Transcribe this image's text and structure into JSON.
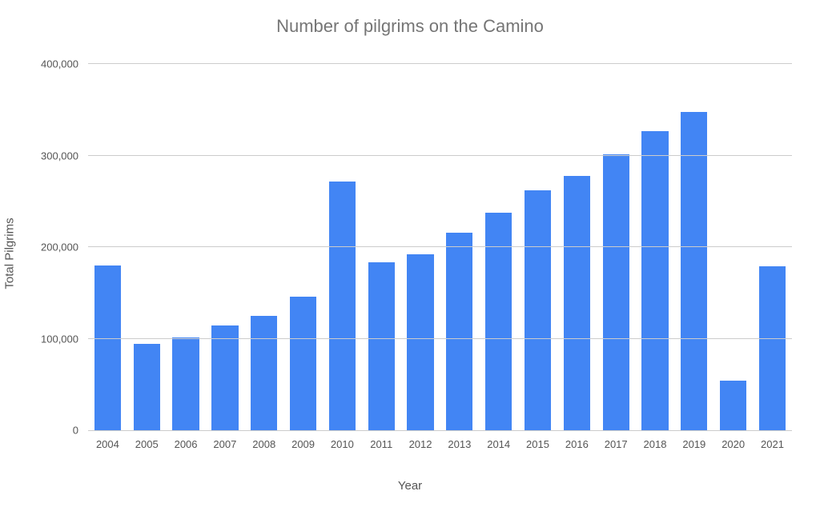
{
  "chart": {
    "type": "bar",
    "title": "Number of pilgrims on the Camino",
    "title_fontsize": 22,
    "title_color": "#757575",
    "xlabel": "Year",
    "ylabel": "Total Pilgrims",
    "axis_label_fontsize": 15,
    "axis_label_color": "#555555",
    "tick_fontsize": 13,
    "tick_color": "#555555",
    "background_color": "#ffffff",
    "grid_color": "#cccccc",
    "bar_color": "#4285f4",
    "bar_width": 0.68,
    "ylim": [
      0,
      400000
    ],
    "yticks": [
      0,
      100000,
      200000,
      300000,
      400000
    ],
    "ytick_labels": [
      "0",
      "100,000",
      "200,000",
      "300,000",
      "400,000"
    ],
    "categories": [
      "2004",
      "2005",
      "2006",
      "2007",
      "2008",
      "2009",
      "2010",
      "2011",
      "2012",
      "2013",
      "2014",
      "2015",
      "2016",
      "2017",
      "2018",
      "2019",
      "2020",
      "2021"
    ],
    "values": [
      180000,
      94000,
      101000,
      114000,
      125000,
      146000,
      272000,
      183000,
      192000,
      216000,
      238000,
      262000,
      278000,
      301000,
      327000,
      348000,
      54000,
      179000
    ]
  }
}
